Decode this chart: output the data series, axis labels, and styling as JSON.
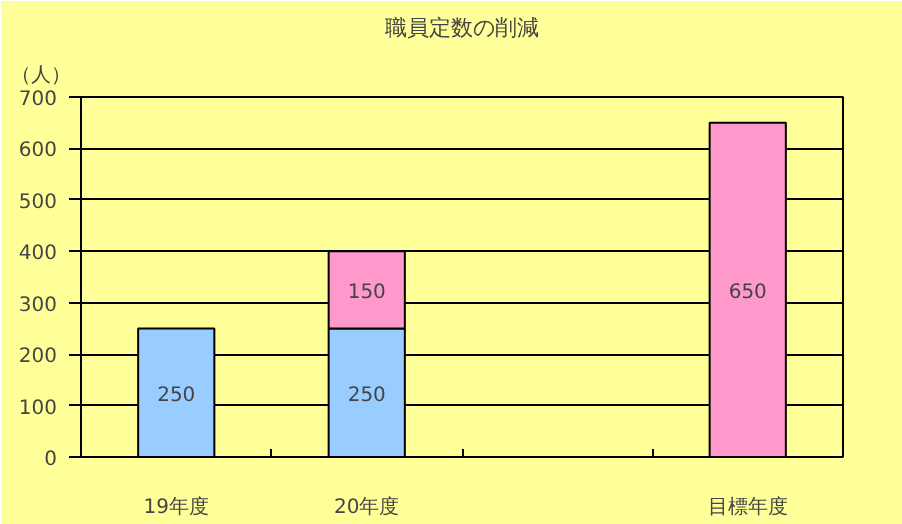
{
  "chart_data": {
    "type": "bar",
    "title": "職員定数の削減",
    "ylabel": "（人）",
    "categories": [
      "19年度",
      "20年度",
      null,
      "目標年度"
    ],
    "series": [
      {
        "color": "#99ccff",
        "values": [
          250,
          250,
          null,
          null
        ]
      },
      {
        "color": "#ff99cc",
        "values": [
          null,
          150,
          null,
          650
        ]
      }
    ],
    "stacked": true,
    "data_labels": true,
    "ylim": [
      0,
      700
    ],
    "yticks": [
      0,
      100,
      200,
      300,
      400,
      500,
      600,
      700
    ],
    "grid": "y"
  }
}
